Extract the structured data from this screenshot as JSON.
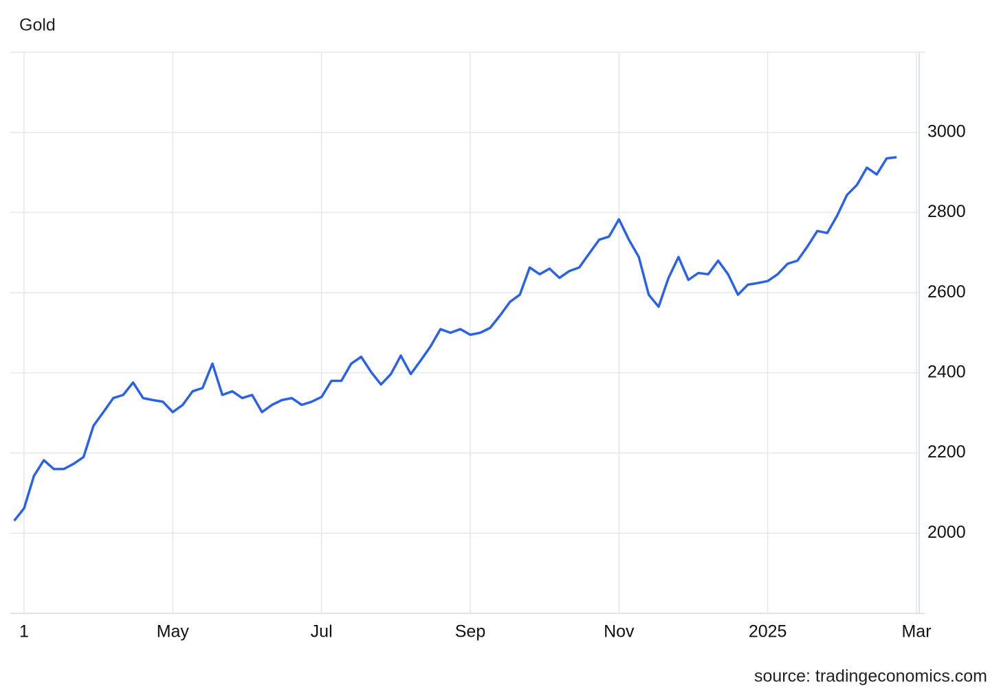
{
  "chart_data": {
    "type": "line",
    "title": "Gold",
    "source": "source: tradingeconomics.com",
    "categories": [
      null,
      "1",
      null,
      null,
      null,
      null,
      null,
      null,
      null,
      null,
      null,
      null,
      null,
      null,
      null,
      null,
      "May",
      null,
      null,
      null,
      null,
      null,
      null,
      null,
      null,
      null,
      null,
      null,
      null,
      null,
      null,
      "Jul",
      null,
      null,
      null,
      null,
      null,
      null,
      null,
      null,
      null,
      null,
      null,
      null,
      null,
      null,
      "Sep",
      null,
      null,
      null,
      null,
      null,
      null,
      null,
      null,
      null,
      null,
      null,
      null,
      null,
      null,
      "Nov",
      null,
      null,
      null,
      null,
      null,
      null,
      null,
      null,
      null,
      null,
      null,
      null,
      null,
      null,
      "2025",
      null,
      null,
      null,
      null,
      null,
      null,
      null,
      null,
      null,
      null,
      null,
      null,
      null,
      null,
      "Mar"
    ],
    "series": [
      {
        "name": "Gold",
        "color": "#2962e8",
        "values": [
          2031,
          2062,
          2143,
          2182,
          2160,
          2160,
          2173,
          2190,
          2268,
          2302,
          2337,
          2345,
          2376,
          2337,
          2332,
          2328,
          2302,
          2320,
          2354,
          2362,
          2423,
          2345,
          2354,
          2337,
          2345,
          2302,
          2320,
          2332,
          2337,
          2320,
          2328,
          2340,
          2380,
          2380,
          2423,
          2440,
          2402,
          2371,
          2397,
          2443,
          2397,
          2431,
          2466,
          2509,
          2500,
          2509,
          2495,
          2500,
          2512,
          2543,
          2577,
          2595,
          2663,
          2646,
          2660,
          2637,
          2654,
          2663,
          2698,
          2732,
          2740,
          2783,
          2732,
          2689,
          2595,
          2565,
          2637,
          2689,
          2632,
          2649,
          2646,
          2680,
          2646,
          2595,
          2620,
          2624,
          2629,
          2646,
          2672,
          2680,
          2715,
          2754,
          2749,
          2792,
          2844,
          2869,
          2912,
          2895,
          2935,
          2938,
          null,
          null
        ]
      }
    ],
    "ylim": [
      1800,
      3200
    ],
    "yticks": [
      2000,
      2200,
      2400,
      2600,
      2800,
      3000
    ],
    "grid": true
  }
}
